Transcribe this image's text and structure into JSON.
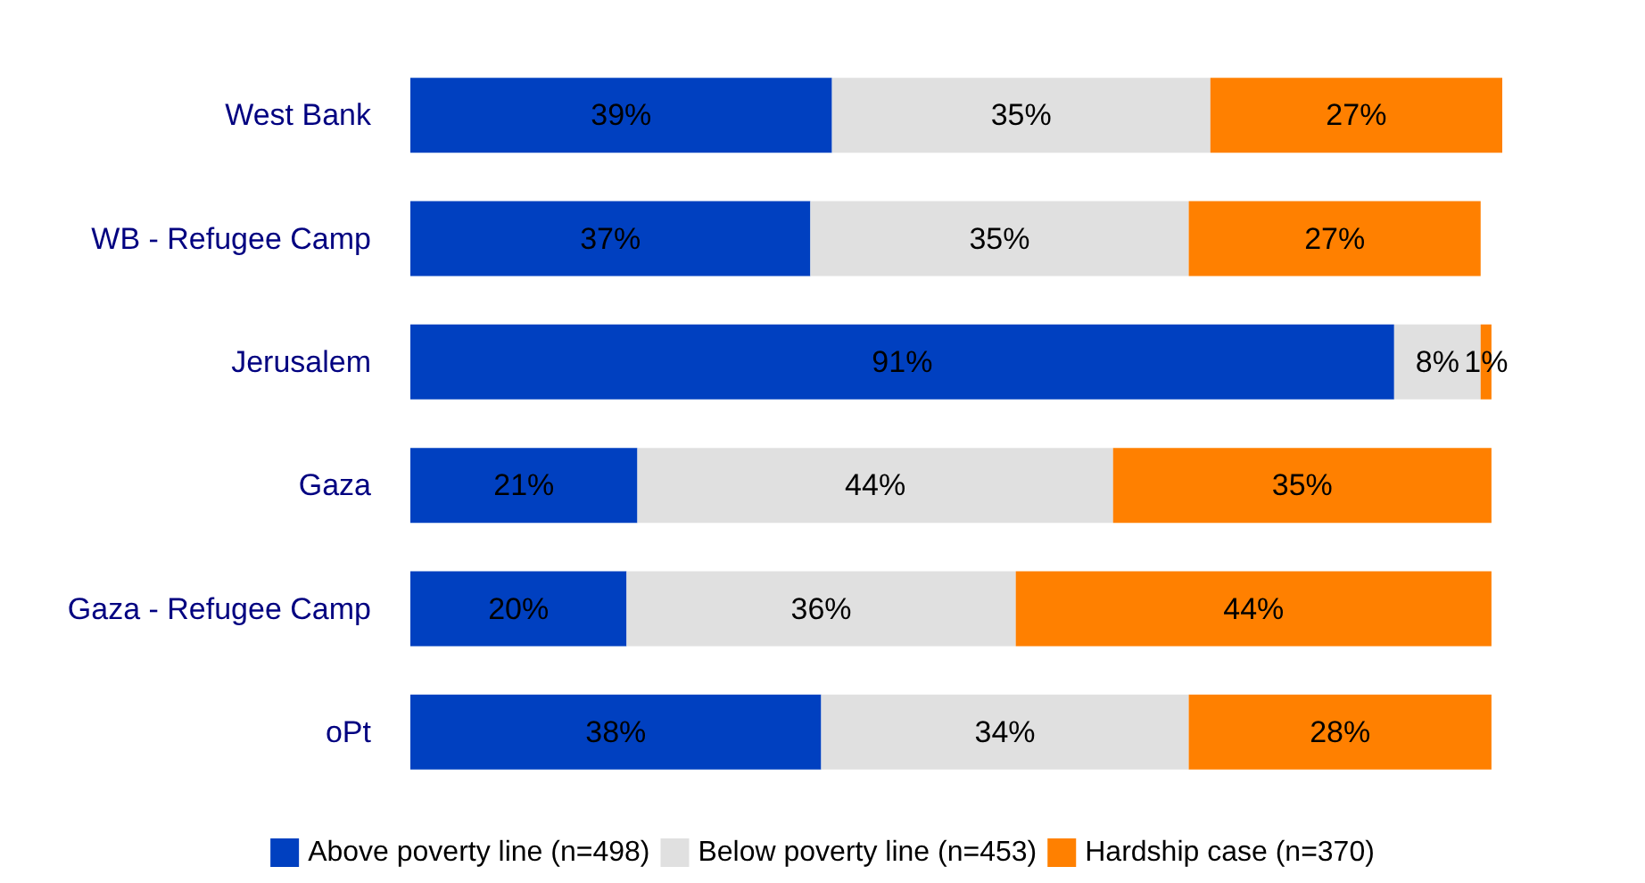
{
  "chart_data": {
    "type": "bar",
    "orientation": "horizontal",
    "stacked": true,
    "legend": "bottom",
    "categories": [
      "West Bank",
      "WB - Refugee Camp",
      "Jerusalem",
      "Gaza",
      "Gaza - Refugee Camp",
      "oPt"
    ],
    "series": [
      {
        "name": "Above poverty line (n=498)",
        "color": "#0040c0",
        "values": [
          39,
          37,
          91,
          21,
          20,
          38
        ],
        "value_labels": [
          "39%",
          "37%",
          "91%",
          "21%",
          "20%",
          "38%"
        ]
      },
      {
        "name": "Below poverty line (n=453)",
        "color": "#e0e0e0",
        "values": [
          35,
          35,
          8,
          44,
          36,
          34
        ],
        "value_labels": [
          "35%",
          "35%",
          "8%",
          "44%",
          "36%",
          "34%"
        ]
      },
      {
        "name": "Hardship case (n=370)",
        "color": "#ff8000",
        "values": [
          27,
          27,
          1,
          35,
          44,
          28
        ],
        "value_labels": [
          "27%",
          "27%",
          "1%",
          "35%",
          "44%",
          "28%"
        ]
      }
    ]
  }
}
